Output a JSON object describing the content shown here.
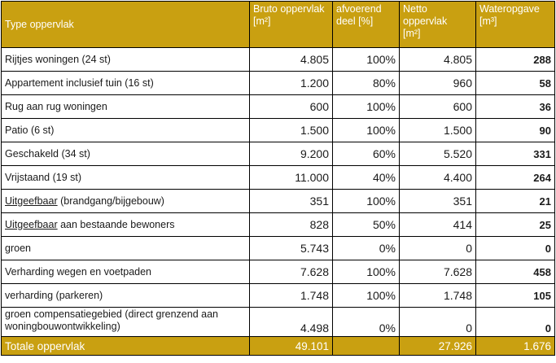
{
  "headers": {
    "type": "Type oppervlak",
    "bruto": "Bruto oppervlak",
    "bruto_unit": "[m²]",
    "afvoerend": "afvoerend deel [%]",
    "netto": "Netto oppervlak",
    "netto_unit": "[m²]",
    "water": "Wateropgave",
    "water_unit": "[m³]"
  },
  "rows": [
    {
      "label": "Rijtjes woningen (24 st)",
      "bruto": "4.805",
      "pct": "100%",
      "netto": "4.805",
      "water": "288"
    },
    {
      "label": "Appartement inclusief tuin (16 st)",
      "bruto": "1.200",
      "pct": "80%",
      "netto": "960",
      "water": "58"
    },
    {
      "label": "Rug aan rug woningen",
      "bruto": "600",
      "pct": "100%",
      "netto": "600",
      "water": "36"
    },
    {
      "label": "Patio (6 st)",
      "bruto": "1.500",
      "pct": "100%",
      "netto": "1.500",
      "water": "90"
    },
    {
      "label": "Geschakeld (34 st)",
      "bruto": "9.200",
      "pct": "60%",
      "netto": "5.520",
      "water": "331"
    },
    {
      "label": "Vrijstaand (19 st)",
      "bruto": "11.000",
      "pct": "40%",
      "netto": "4.400",
      "water": "264"
    },
    {
      "label_u": "Uitgeefbaar",
      "label_rest": " (brandgang/bijgebouw)",
      "bruto": "351",
      "pct": "100%",
      "netto": "351",
      "water": "21"
    },
    {
      "label_u": "Uitgeefbaar",
      "label_rest": " aan bestaande bewoners",
      "bruto": "828",
      "pct": "50%",
      "netto": "414",
      "water": "25"
    },
    {
      "label": "groen",
      "bruto": "5.743",
      "pct": "0%",
      "netto": "0",
      "water": "0"
    },
    {
      "label": "Verharding wegen en voetpaden",
      "bruto": "7.628",
      "pct": "100%",
      "netto": "7.628",
      "water": "458"
    },
    {
      "label": "verharding (parkeren)",
      "bruto": "1.748",
      "pct": "100%",
      "netto": "1.748",
      "water": "105"
    },
    {
      "label": "groen compensatiegebied (direct grenzend aan woningbouwontwikkeling)",
      "bruto": "4.498",
      "pct": "0%",
      "netto": "0",
      "water": "0"
    }
  ],
  "footer": {
    "label": "Totale  oppervlak",
    "bruto": "49.101",
    "pct": "",
    "netto": "27.926",
    "water": "1.676"
  }
}
